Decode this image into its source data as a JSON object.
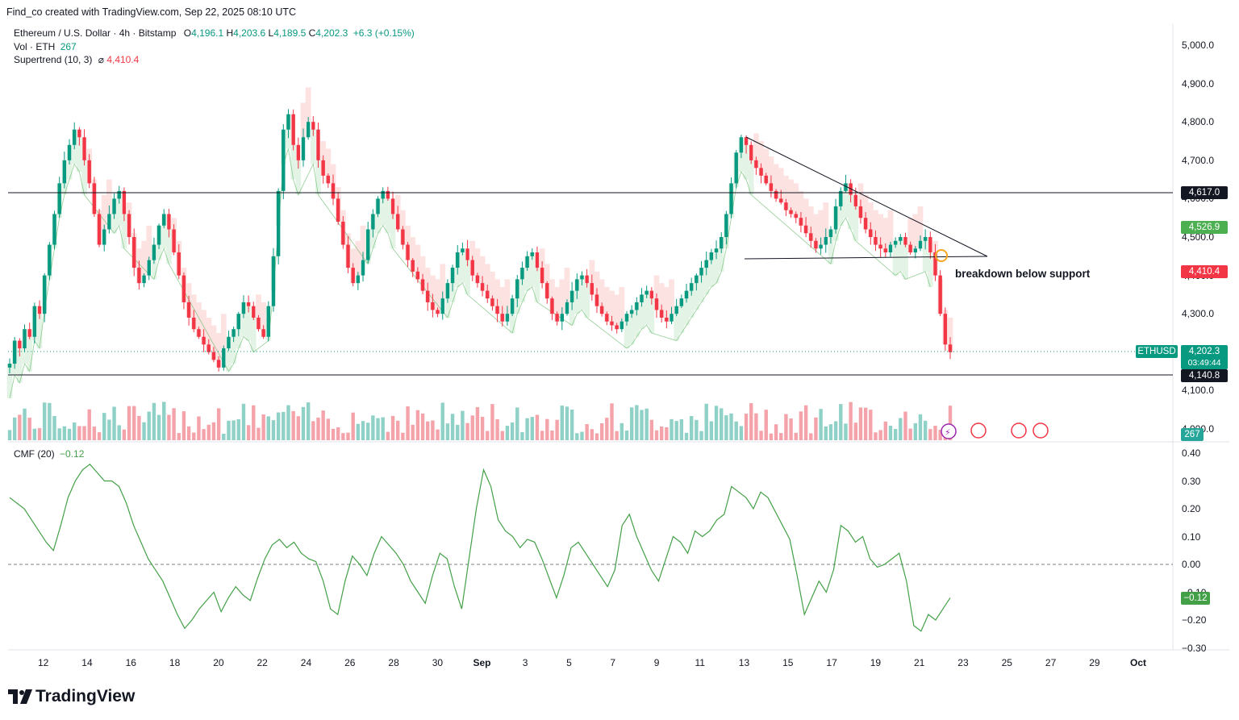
{
  "header": {
    "attribution": "Find_co created with TradingView.com, Sep 22, 2025 08:10 UTC"
  },
  "legend": {
    "symbol": "Ethereum / U.S. Dollar · 4h · Bitstamp",
    "open_key": "O",
    "open": "4,196.1",
    "high_key": "H",
    "high": "4,203.6",
    "low_key": "L",
    "low": "4,189.5",
    "close_key": "C",
    "close": "4,202.3",
    "change": "+6.3 (+0.15%)",
    "vol_label": "Vol · ETH",
    "vol_value": "267",
    "supertrend_label": "Supertrend (10, 3)",
    "supertrend_value": "4,410.4",
    "cmf_label": "CMF (20)",
    "cmf_value": "−0.12"
  },
  "price_axis": [
    "5,000.0",
    "4,900.0",
    "4,800.0",
    "4,700.0",
    "4,600.0",
    "4,500.0",
    "4,400.0",
    "4,300.0",
    "4,200.0",
    "4,100.0",
    "4,000.0"
  ],
  "cmf_axis": [
    "0.40",
    "0.30",
    "0.20",
    "0.10",
    "0.00",
    "−0.10",
    "−0.20",
    "−0.30"
  ],
  "time_axis": [
    "12",
    "14",
    "16",
    "18",
    "20",
    "22",
    "24",
    "26",
    "28",
    "30",
    "Sep",
    "3",
    "5",
    "7",
    "9",
    "11",
    "13",
    "15",
    "17",
    "19",
    "21",
    "23",
    "25",
    "27",
    "29",
    "Oct"
  ],
  "price_tags": {
    "resistance": "4,617.0",
    "green_level": "4,526.9",
    "supertrend": "4,410.4",
    "symbol_name": "ETHUSD",
    "last_price": "4,202.3",
    "countdown": "03:49:44",
    "support": "4,140.8",
    "volume": "267",
    "cmf": "−0.12"
  },
  "annotation": "breakdown below support",
  "brand": "TradingView",
  "colors": {
    "up": "#089981",
    "down": "#f23645",
    "cmf_line": "#43a047",
    "supertrend_down_fill": "#fde2e2",
    "supertrend_up_fill": "#e3f4e6"
  },
  "chart_data": {
    "type": "candlestick",
    "timeframe": "4h",
    "ylim": [
      3980,
      5020
    ],
    "horizontal_levels": [
      4617.0,
      4140.8
    ],
    "last_close": 4202.3,
    "series_close": [
      4170,
      4230,
      4210,
      4260,
      4240,
      4320,
      4300,
      4400,
      4480,
      4560,
      4640,
      4700,
      4740,
      4780,
      4760,
      4700,
      4640,
      4560,
      4480,
      4520,
      4560,
      4600,
      4620,
      4560,
      4500,
      4420,
      4380,
      4400,
      4440,
      4480,
      4530,
      4560,
      4520,
      4460,
      4400,
      4330,
      4290,
      4260,
      4240,
      4220,
      4200,
      4180,
      4160,
      4210,
      4240,
      4260,
      4300,
      4330,
      4320,
      4290,
      4260,
      4240,
      4320,
      4450,
      4620,
      4780,
      4820,
      4740,
      4700,
      4760,
      4800,
      4780,
      4700,
      4660,
      4640,
      4600,
      4540,
      4480,
      4420,
      4380,
      4400,
      4440,
      4520,
      4560,
      4600,
      4620,
      4600,
      4560,
      4520,
      4480,
      4440,
      4410,
      4390,
      4360,
      4330,
      4310,
      4300,
      4340,
      4380,
      4420,
      4460,
      4470,
      4440,
      4400,
      4380,
      4360,
      4340,
      4320,
      4300,
      4280,
      4300,
      4340,
      4390,
      4420,
      4450,
      4460,
      4420,
      4380,
      4340,
      4300,
      4280,
      4300,
      4330,
      4360,
      4390,
      4400,
      4380,
      4350,
      4320,
      4300,
      4280,
      4270,
      4260,
      4280,
      4300,
      4310,
      4330,
      4350,
      4360,
      4340,
      4310,
      4290,
      4280,
      4300,
      4320,
      4340,
      4360,
      4380,
      4400,
      4420,
      4440,
      4460,
      4470,
      4500,
      4560,
      4640,
      4720,
      4760,
      4740,
      4700,
      4680,
      4660,
      4640,
      4620,
      4600,
      4590,
      4570,
      4560,
      4550,
      4530,
      4510,
      4490,
      4470,
      4480,
      4500,
      4520,
      4580,
      4620,
      4640,
      4610,
      4580,
      4550,
      4520,
      4500,
      4480,
      4470,
      4460,
      4480,
      4490,
      4500,
      4480,
      4460,
      4470,
      4490,
      4500,
      4460,
      4400,
      4300,
      4220,
      4200
    ],
    "cmf": {
      "ylim": [
        -0.3,
        0.4
      ],
      "values": [
        0.24,
        0.22,
        0.2,
        0.16,
        0.12,
        0.08,
        0.05,
        0.14,
        0.24,
        0.3,
        0.34,
        0.36,
        0.33,
        0.3,
        0.3,
        0.28,
        0.22,
        0.14,
        0.08,
        0.02,
        -0.02,
        -0.06,
        -0.12,
        -0.18,
        -0.23,
        -0.2,
        -0.16,
        -0.13,
        -0.1,
        -0.17,
        -0.12,
        -0.08,
        -0.11,
        -0.13,
        -0.05,
        0.02,
        0.07,
        0.09,
        0.06,
        0.08,
        0.04,
        0.02,
        0.01,
        -0.06,
        -0.16,
        -0.18,
        -0.06,
        0.03,
        0.0,
        -0.04,
        0.04,
        0.1,
        0.07,
        0.04,
        0.0,
        -0.06,
        -0.1,
        -0.14,
        -0.04,
        0.04,
        0.02,
        -0.08,
        -0.16,
        0.02,
        0.2,
        0.34,
        0.28,
        0.16,
        0.12,
        0.1,
        0.06,
        0.09,
        0.08,
        0.02,
        -0.05,
        -0.12,
        -0.04,
        0.06,
        0.08,
        0.04,
        0.0,
        -0.04,
        -0.08,
        -0.02,
        0.14,
        0.18,
        0.1,
        0.04,
        -0.02,
        -0.06,
        0.02,
        0.1,
        0.08,
        0.04,
        0.12,
        0.1,
        0.12,
        0.16,
        0.18,
        0.28,
        0.26,
        0.24,
        0.2,
        0.26,
        0.24,
        0.19,
        0.14,
        0.09,
        -0.04,
        -0.18,
        -0.12,
        -0.06,
        -0.1,
        -0.02,
        0.14,
        0.12,
        0.08,
        0.1,
        0.02,
        -0.01,
        0.0,
        0.02,
        0.04,
        -0.06,
        -0.22,
        -0.24,
        -0.18,
        -0.2,
        -0.16,
        -0.12
      ],
      "zero_line": 0.0
    }
  }
}
